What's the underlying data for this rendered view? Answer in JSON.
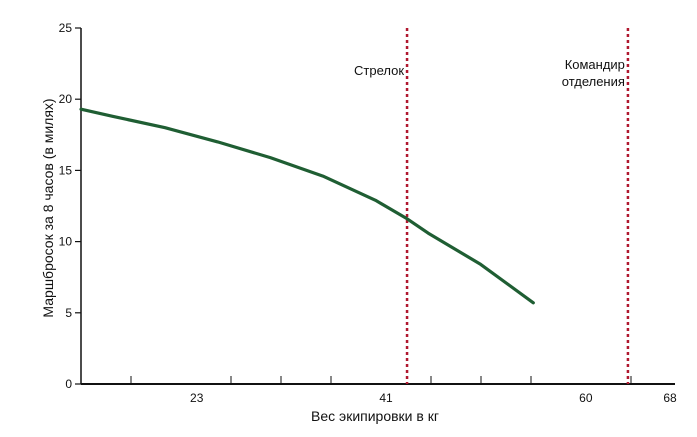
{
  "chart_data": {
    "type": "line",
    "xlabel": "Вес экипировки в кг",
    "ylabel": "Маршбросок за 8 часов (в милях)",
    "xlim": [
      12,
      68
    ],
    "ylim": [
      0,
      25
    ],
    "x_ticks": [
      23,
      41,
      60,
      68
    ],
    "y_ticks": [
      0,
      5,
      10,
      15,
      20,
      25
    ],
    "grid": false,
    "series": [
      {
        "color": "#1f5e33",
        "x": [
          12,
          15,
          20,
          25,
          30,
          35,
          40,
          43,
          45,
          50,
          55
        ],
        "y": [
          19.3,
          18.8,
          18.0,
          17.0,
          15.9,
          14.6,
          12.9,
          11.6,
          10.6,
          8.4,
          5.7
        ]
      }
    ],
    "reference_lines": [
      {
        "x": 43,
        "label": [
          "Стрелок"
        ],
        "color": "#b0182f"
      },
      {
        "x": 64,
        "label": [
          "Командир",
          "отделения"
        ],
        "color": "#b0182f"
      }
    ]
  }
}
